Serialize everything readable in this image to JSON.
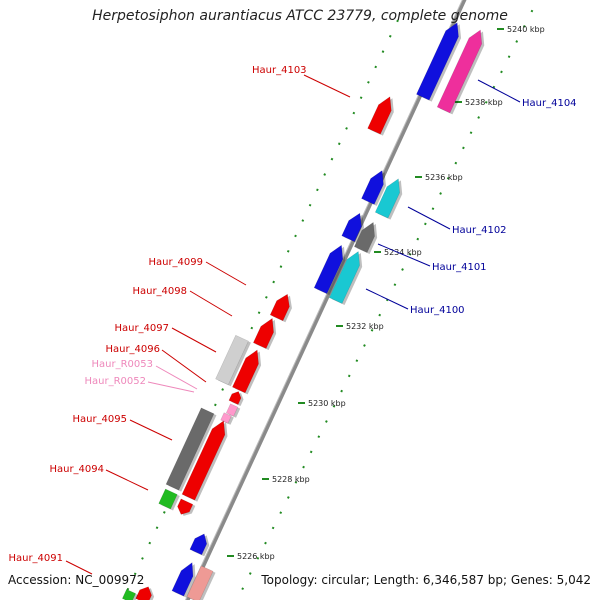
{
  "title": "Herpetosiphon aurantiacus ATCC 23779, complete genome",
  "footer": {
    "accession": "Accession: NC_009972",
    "summary": "Topology: circular; Length: 6,346,587 bp; Genes: 5,042"
  },
  "colors": {
    "red": "#ee0000",
    "blue": "#1010dd",
    "pink": "#ee2f9c",
    "cyan": "#19c8d2",
    "gray": "#6a6a6a",
    "lightgray": "#cfcfcf",
    "green": "#22bb22",
    "salmon": "#ee9a95",
    "light_pink": "#ff99cc",
    "backbone": "#8a8a8a",
    "tick_green": "#228b22",
    "label_red": "#cc0000",
    "label_blue": "#000099",
    "label_pink": "#ee88bb"
  },
  "kbp_ticks": [
    "5240 kbp",
    "5238 kbp",
    "5236 kbp",
    "5234 kbp",
    "5232 kbp",
    "5230 kbp",
    "5228 kbp",
    "5226 kbp"
  ],
  "gene_labels": [
    {
      "name": "Haur_4103",
      "side": "left",
      "color": "red"
    },
    {
      "name": "Haur_4104",
      "side": "right",
      "color": "blue"
    },
    {
      "name": "Haur_4102",
      "side": "right",
      "color": "blue"
    },
    {
      "name": "Haur_4101",
      "side": "right",
      "color": "blue"
    },
    {
      "name": "Haur_4100",
      "side": "right",
      "color": "blue"
    },
    {
      "name": "Haur_4099",
      "side": "left",
      "color": "red"
    },
    {
      "name": "Haur_4098",
      "side": "left",
      "color": "red"
    },
    {
      "name": "Haur_4097",
      "side": "left",
      "color": "red"
    },
    {
      "name": "Haur_4096",
      "side": "left",
      "color": "red"
    },
    {
      "name": "Haur_R0053",
      "side": "left",
      "color": "pink"
    },
    {
      "name": "Haur_R0052",
      "side": "left",
      "color": "pink"
    },
    {
      "name": "Haur_4095",
      "side": "left",
      "color": "red"
    },
    {
      "name": "Haur_4094",
      "side": "left",
      "color": "red"
    },
    {
      "name": "Haur_4091",
      "side": "left",
      "color": "red"
    }
  ]
}
